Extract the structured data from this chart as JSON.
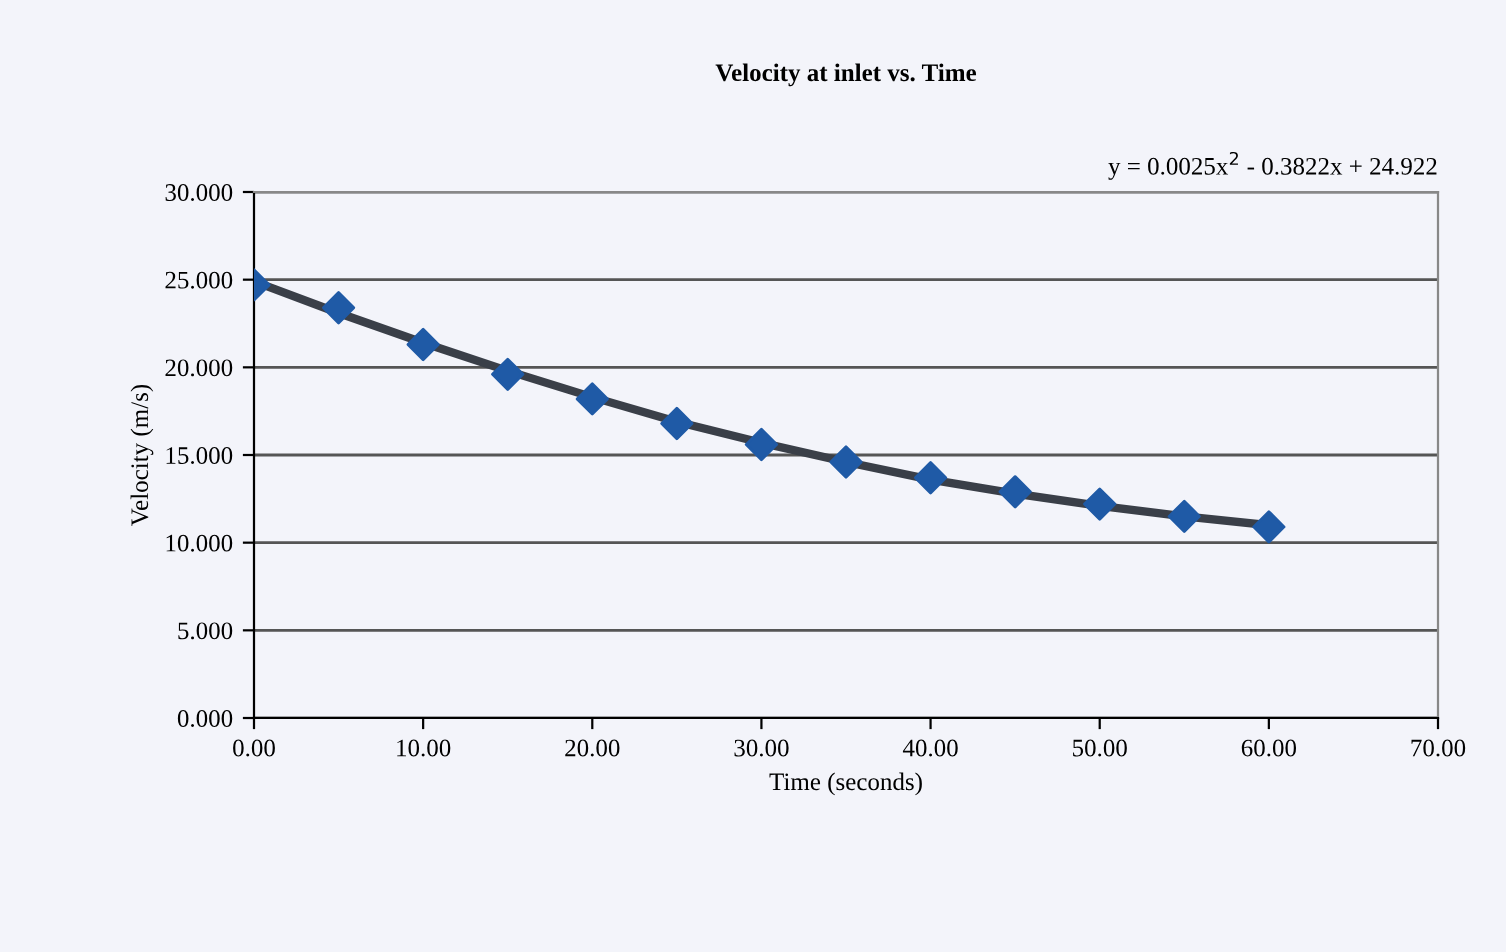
{
  "chart_data": {
    "type": "scatter",
    "title": "Velocity at inlet vs. Time",
    "xlabel": "Time (seconds)",
    "ylabel": "Velocity (m/s)",
    "series": [
      {
        "type": "line",
        "color": "#3a3f48",
        "marker": "none",
        "line_style": "solid",
        "x": [
          0,
          5,
          10,
          15,
          20,
          25,
          30,
          35,
          40,
          45,
          50,
          55,
          60
        ],
        "values": [
          24.9,
          23.1,
          21.4,
          19.8,
          18.3,
          16.9,
          15.7,
          14.6,
          13.6,
          12.8,
          12.1,
          11.5,
          11.0
        ]
      },
      {
        "color": "#1f5aa6",
        "marker": "diamond",
        "x": [
          0,
          5,
          10,
          15,
          20,
          25,
          30,
          35,
          40,
          45,
          50,
          55,
          60
        ],
        "values": [
          24.7,
          23.4,
          21.3,
          19.6,
          18.2,
          16.8,
          15.6,
          14.6,
          13.7,
          12.9,
          12.2,
          11.5,
          10.9
        ]
      }
    ],
    "annotations": [
      "y = 0.0025x$^{2}$ - 0.3822x + 24.922"
    ],
    "xlim": [
      0,
      70
    ],
    "xticks": [
      {
        "value": 0,
        "label": "0.00"
      },
      {
        "value": 10,
        "label": "10.00"
      },
      {
        "value": 20,
        "label": "20.00"
      },
      {
        "value": 30,
        "label": "30.00"
      },
      {
        "value": 40,
        "label": "40.00"
      },
      {
        "value": 50,
        "label": "50.00"
      },
      {
        "value": 60,
        "label": "60.00"
      },
      {
        "value": 70,
        "label": "70.00"
      }
    ],
    "ylim": [
      0,
      30
    ],
    "yticks": [
      {
        "value": 0,
        "label": "0.000"
      },
      {
        "value": 5,
        "label": "5.000"
      },
      {
        "value": 10,
        "label": "10.000"
      },
      {
        "value": 15,
        "label": "15.000"
      },
      {
        "value": 20,
        "label": "20.000"
      },
      {
        "value": 25,
        "label": "25.000"
      },
      {
        "value": 30,
        "label": "30.000"
      }
    ],
    "grid": "y",
    "legend": false
  }
}
